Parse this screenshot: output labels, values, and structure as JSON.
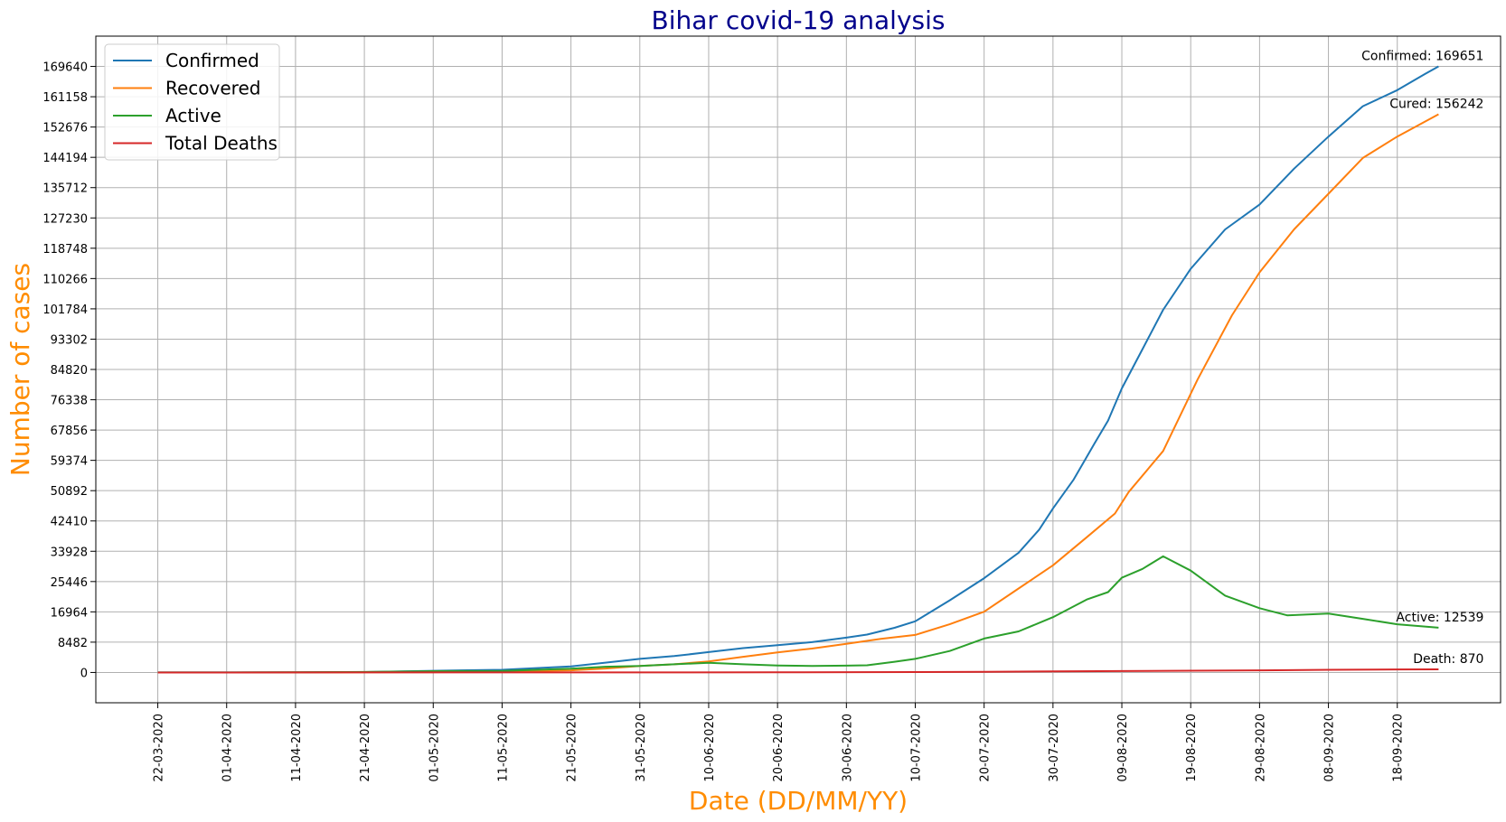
{
  "chart_data": {
    "type": "line",
    "title": "Bihar covid-19 analysis",
    "xlabel": "Date (DD/MM/YY)",
    "ylabel": "Number of cases",
    "colors": {
      "title": "#00008b",
      "labels": "#ff8c00",
      "Confirmed": "#1f77b4",
      "Recovered": "#ff7f0e",
      "Active": "#2ca02c",
      "Total Deaths": "#d62728"
    },
    "grid": true,
    "legend": "top-left",
    "xlim": [
      "2020-03-13",
      "2020-10-03"
    ],
    "ylim": [
      -8482,
      178122
    ],
    "x_ticks": [
      "22-03-2020",
      "01-04-2020",
      "11-04-2020",
      "21-04-2020",
      "01-05-2020",
      "11-05-2020",
      "21-05-2020",
      "31-05-2020",
      "10-06-2020",
      "20-06-2020",
      "30-06-2020",
      "10-07-2020",
      "20-07-2020",
      "30-07-2020",
      "09-08-2020",
      "19-08-2020",
      "29-08-2020",
      "08-09-2020",
      "18-09-2020"
    ],
    "y_ticks": [
      "0",
      "8482",
      "16964",
      "25446",
      "33928",
      "42410",
      "50892",
      "59374",
      "67856",
      "76338",
      "84820",
      "93302",
      "101784",
      "110266",
      "118748",
      "127230",
      "135712",
      "144194",
      "152676",
      "161158",
      "169640"
    ],
    "series": [
      {
        "name": "Confirmed",
        "points": [
          [
            "2020-03-22",
            2
          ],
          [
            "2020-04-01",
            23
          ],
          [
            "2020-04-11",
            60
          ],
          [
            "2020-04-21",
            113
          ],
          [
            "2020-05-01",
            466
          ],
          [
            "2020-05-11",
            747
          ],
          [
            "2020-05-21",
            1674
          ],
          [
            "2020-05-26",
            2737
          ],
          [
            "2020-05-31",
            3807
          ],
          [
            "2020-06-05",
            4596
          ],
          [
            "2020-06-10",
            5710
          ],
          [
            "2020-06-15",
            6810
          ],
          [
            "2020-06-20",
            7612
          ],
          [
            "2020-06-25",
            8490
          ],
          [
            "2020-06-30",
            9744
          ],
          [
            "2020-07-03",
            10600
          ],
          [
            "2020-07-07",
            12500
          ],
          [
            "2020-07-10",
            14330
          ],
          [
            "2020-07-15",
            20200
          ],
          [
            "2020-07-20",
            26379
          ],
          [
            "2020-07-25",
            33511
          ],
          [
            "2020-07-28",
            40000
          ],
          [
            "2020-07-30",
            45919
          ],
          [
            "2020-08-02",
            54000
          ],
          [
            "2020-08-05",
            64000
          ],
          [
            "2020-08-07",
            70500
          ],
          [
            "2020-08-09",
            79500
          ],
          [
            "2020-08-12",
            90500
          ],
          [
            "2020-08-15",
            101500
          ],
          [
            "2020-08-19",
            113000
          ],
          [
            "2020-08-24",
            124000
          ],
          [
            "2020-08-29",
            131000
          ],
          [
            "2020-09-03",
            141000
          ],
          [
            "2020-09-08",
            150000
          ],
          [
            "2020-09-13",
            158500
          ],
          [
            "2020-09-18",
            163000
          ],
          [
            "2020-09-22",
            167500
          ],
          [
            "2020-09-24",
            169651
          ]
        ]
      },
      {
        "name": "Recovered",
        "points": [
          [
            "2020-03-22",
            0
          ],
          [
            "2020-04-11",
            10
          ],
          [
            "2020-04-21",
            40
          ],
          [
            "2020-05-01",
            100
          ],
          [
            "2020-05-11",
            300
          ],
          [
            "2020-05-21",
            600
          ],
          [
            "2020-05-26",
            1100
          ],
          [
            "2020-05-31",
            1800
          ],
          [
            "2020-06-05",
            2300
          ],
          [
            "2020-06-10",
            3100
          ],
          [
            "2020-06-15",
            4400
          ],
          [
            "2020-06-20",
            5600
          ],
          [
            "2020-06-25",
            6700
          ],
          [
            "2020-06-30",
            8000
          ],
          [
            "2020-07-05",
            9400
          ],
          [
            "2020-07-10",
            10500
          ],
          [
            "2020-07-15",
            13500
          ],
          [
            "2020-07-20",
            17000
          ],
          [
            "2020-07-25",
            23500
          ],
          [
            "2020-07-30",
            30000
          ],
          [
            "2020-08-04",
            38000
          ],
          [
            "2020-08-08",
            44500
          ],
          [
            "2020-08-10",
            50500
          ],
          [
            "2020-08-15",
            62000
          ],
          [
            "2020-08-20",
            82000
          ],
          [
            "2020-08-25",
            100000
          ],
          [
            "2020-08-29",
            112000
          ],
          [
            "2020-09-03",
            124000
          ],
          [
            "2020-09-08",
            134000
          ],
          [
            "2020-09-13",
            144000
          ],
          [
            "2020-09-18",
            150000
          ],
          [
            "2020-09-24",
            156242
          ]
        ]
      },
      {
        "name": "Active",
        "points": [
          [
            "2020-03-22",
            2
          ],
          [
            "2020-04-11",
            50
          ],
          [
            "2020-04-21",
            150
          ],
          [
            "2020-05-01",
            360
          ],
          [
            "2020-05-11",
            440
          ],
          [
            "2020-05-21",
            1060
          ],
          [
            "2020-05-26",
            1600
          ],
          [
            "2020-05-31",
            1800
          ],
          [
            "2020-06-05",
            2300
          ],
          [
            "2020-06-10",
            2700
          ],
          [
            "2020-06-15",
            2300
          ],
          [
            "2020-06-20",
            1950
          ],
          [
            "2020-06-25",
            1800
          ],
          [
            "2020-06-30",
            1900
          ],
          [
            "2020-07-03",
            2000
          ],
          [
            "2020-07-07",
            3000
          ],
          [
            "2020-07-10",
            3800
          ],
          [
            "2020-07-15",
            6000
          ],
          [
            "2020-07-20",
            9500
          ],
          [
            "2020-07-25",
            11500
          ],
          [
            "2020-07-30",
            15500
          ],
          [
            "2020-08-04",
            20500
          ],
          [
            "2020-08-07",
            22500
          ],
          [
            "2020-08-09",
            26500
          ],
          [
            "2020-08-12",
            29000
          ],
          [
            "2020-08-15",
            32500
          ],
          [
            "2020-08-19",
            28500
          ],
          [
            "2020-08-24",
            21500
          ],
          [
            "2020-08-29",
            18000
          ],
          [
            "2020-09-02",
            16000
          ],
          [
            "2020-09-08",
            16500
          ],
          [
            "2020-09-13",
            15000
          ],
          [
            "2020-09-18",
            13500
          ],
          [
            "2020-09-24",
            12539
          ]
        ]
      },
      {
        "name": "Total Deaths",
        "points": [
          [
            "2020-03-22",
            0
          ],
          [
            "2020-04-21",
            2
          ],
          [
            "2020-05-21",
            10
          ],
          [
            "2020-06-20",
            50
          ],
          [
            "2020-07-10",
            120
          ],
          [
            "2020-07-20",
            200
          ],
          [
            "2020-07-30",
            280
          ],
          [
            "2020-08-09",
            400
          ],
          [
            "2020-08-19",
            500
          ],
          [
            "2020-08-29",
            600
          ],
          [
            "2020-09-08",
            750
          ],
          [
            "2020-09-18",
            840
          ],
          [
            "2020-09-24",
            870
          ]
        ]
      }
    ],
    "annotations": [
      {
        "text": "Confirmed: 169651",
        "series": "Confirmed"
      },
      {
        "text": "Cured: 156242",
        "series": "Recovered"
      },
      {
        "text": "Active: 12539",
        "series": "Active"
      },
      {
        "text": "Death: 870",
        "series": "Total Deaths"
      }
    ]
  }
}
